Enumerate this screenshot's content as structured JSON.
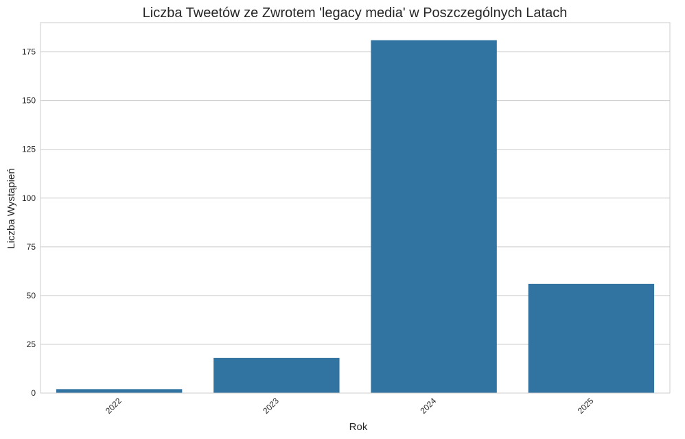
{
  "chart_data": {
    "type": "bar",
    "title": "Liczba Tweetów ze Zwrotem 'legacy media' w Poszczególnych Latach",
    "xlabel": "Rok",
    "ylabel": "Liczba Wystąpień",
    "categories": [
      "2022",
      "2023",
      "2024",
      "2025"
    ],
    "values": [
      2,
      18,
      181,
      56
    ],
    "ylim": [
      0,
      190
    ],
    "yticks": [
      0,
      25,
      50,
      75,
      100,
      125,
      150,
      175
    ],
    "grid": true,
    "bar_color": "#3274a1",
    "x_tick_rotation_deg": 45
  }
}
